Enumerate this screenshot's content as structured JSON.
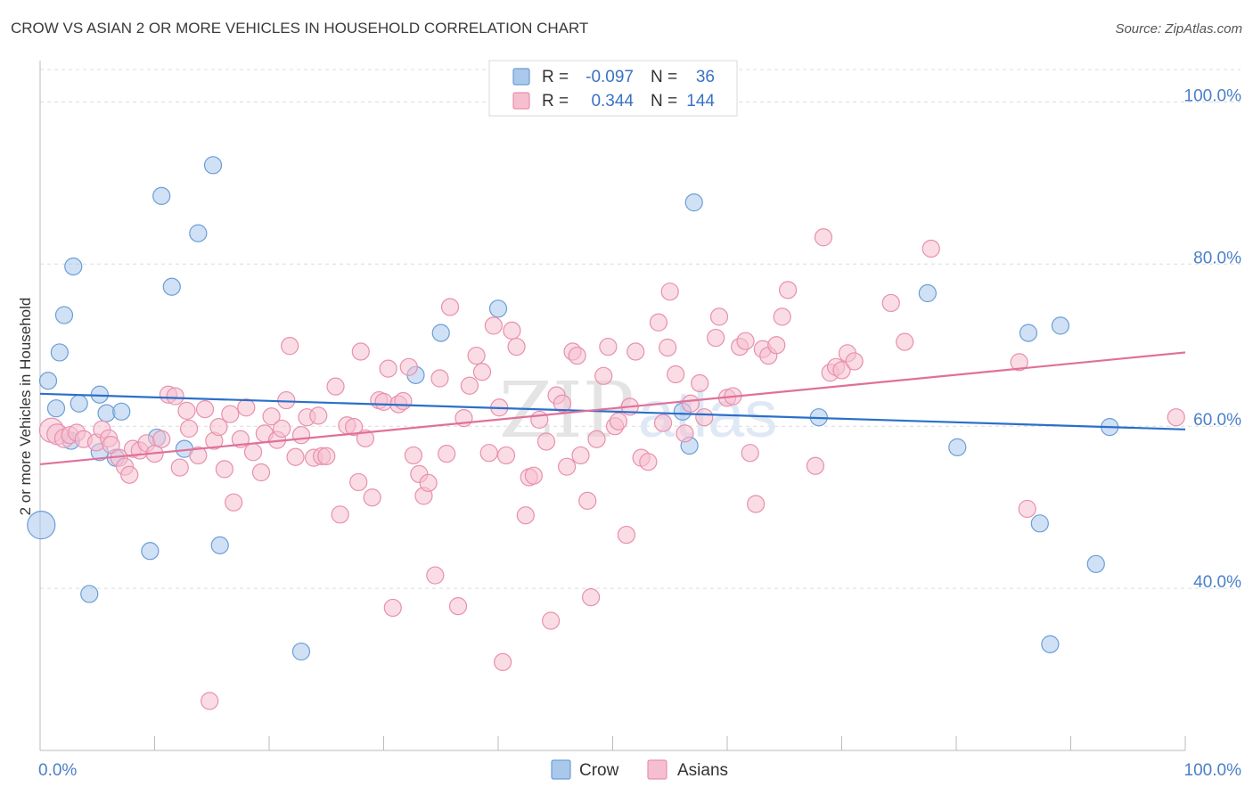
{
  "title": "CROW VS ASIAN 2 OR MORE VEHICLES IN HOUSEHOLD CORRELATION CHART",
  "source": "Source: ZipAtlas.com",
  "watermark_zip": "ZIP",
  "watermark_atlas": "atlas",
  "legend_box": {
    "rows": [
      {
        "r_label": "R =",
        "r_value": "-0.097",
        "n_label": "N =",
        "n_value": "36"
      },
      {
        "r_label": "R =",
        "r_value": "0.344",
        "n_label": "N =",
        "n_value": "144"
      }
    ]
  },
  "bottom_legend": [
    "Crow",
    "Asians"
  ],
  "chart_data": {
    "type": "scatter",
    "xlabel": "",
    "ylabel": "2 or more Vehicles in Household",
    "xlim": [
      0,
      100
    ],
    "ylim": [
      20,
      104
    ],
    "x_tick_labels": [
      "0.0%",
      "100.0%"
    ],
    "y_ticks": [
      40,
      60,
      80,
      100
    ],
    "y_tick_labels": [
      "40.0%",
      "60.0%",
      "80.0%",
      "100.0%"
    ],
    "grid": "horizontal-dashed",
    "legend_placement": "top-center",
    "colors": {
      "crow_fill": "#a9c8ec",
      "crow_stroke": "#6b9ed6",
      "crow_line": "#2b6fca",
      "asian_fill": "#f6bfd0",
      "asian_stroke": "#e890ad",
      "asian_line": "#e0709a",
      "value_text": "#3a72c4",
      "axis_text": "#4a7fc8"
    },
    "series": [
      {
        "name": "Crow",
        "trend": {
          "x": [
            0,
            100
          ],
          "y": [
            64.0,
            59.6
          ]
        },
        "points": [
          [
            0.7,
            65.6,
            14
          ],
          [
            1.4,
            62.2,
            14
          ],
          [
            1.7,
            69.1,
            14
          ],
          [
            2.1,
            73.7,
            14
          ],
          [
            2.7,
            58.2,
            14
          ],
          [
            2.9,
            79.7,
            14
          ],
          [
            3.4,
            62.8,
            14
          ],
          [
            4.3,
            39.3,
            14
          ],
          [
            5.2,
            63.9,
            14
          ],
          [
            5.2,
            56.8,
            14
          ],
          [
            5.8,
            61.6,
            14
          ],
          [
            6.6,
            56.1,
            14
          ],
          [
            7.1,
            61.8,
            14
          ],
          [
            9.6,
            44.6,
            14
          ],
          [
            10.2,
            58.6,
            14
          ],
          [
            10.6,
            88.4,
            14
          ],
          [
            11.5,
            77.2,
            14
          ],
          [
            12.6,
            57.2,
            14
          ],
          [
            13.8,
            83.8,
            14
          ],
          [
            15.1,
            92.2,
            14
          ],
          [
            15.7,
            45.3,
            14
          ],
          [
            22.8,
            32.2,
            14
          ],
          [
            32.8,
            66.3,
            14
          ],
          [
            35.0,
            71.5,
            14
          ],
          [
            40.0,
            74.5,
            14
          ],
          [
            56.1,
            61.8,
            14
          ],
          [
            56.7,
            57.6,
            14
          ],
          [
            57.1,
            87.6,
            14
          ],
          [
            68.0,
            61.1,
            14
          ],
          [
            77.5,
            76.4,
            14
          ],
          [
            80.1,
            57.4,
            14
          ],
          [
            86.3,
            71.5,
            14
          ],
          [
            87.3,
            48.0,
            14
          ],
          [
            89.1,
            72.4,
            14
          ],
          [
            92.2,
            43.0,
            14
          ],
          [
            93.4,
            59.9,
            14
          ],
          [
            88.2,
            33.1,
            14
          ],
          [
            0.1,
            47.8,
            26
          ]
        ]
      },
      {
        "name": "Asians",
        "trend": {
          "x": [
            0,
            100
          ],
          "y": [
            55.3,
            69.1
          ]
        },
        "points": [
          [
            1.0,
            59.5,
            22
          ],
          [
            1.5,
            59.0,
            18
          ],
          [
            2.1,
            58.5,
            16
          ],
          [
            2.6,
            58.9,
            14
          ],
          [
            3.2,
            59.2,
            14
          ],
          [
            3.8,
            58.4,
            14
          ],
          [
            4.9,
            58.0,
            14
          ],
          [
            5.4,
            59.6,
            14
          ],
          [
            6.0,
            58.5,
            14
          ],
          [
            6.2,
            57.7,
            14
          ],
          [
            6.9,
            56.1,
            14
          ],
          [
            7.4,
            55.0,
            14
          ],
          [
            7.8,
            54.0,
            14
          ],
          [
            8.1,
            57.2,
            14
          ],
          [
            8.7,
            57.0,
            14
          ],
          [
            9.3,
            57.9,
            14
          ],
          [
            10.0,
            56.6,
            14
          ],
          [
            10.6,
            58.4,
            14
          ],
          [
            11.2,
            63.9,
            14
          ],
          [
            11.8,
            63.7,
            14
          ],
          [
            12.2,
            54.9,
            14
          ],
          [
            12.8,
            61.9,
            14
          ],
          [
            13.0,
            59.7,
            14
          ],
          [
            13.8,
            56.4,
            14
          ],
          [
            14.4,
            62.1,
            14
          ],
          [
            14.8,
            26.1,
            14
          ],
          [
            15.2,
            58.2,
            14
          ],
          [
            15.6,
            59.9,
            14
          ],
          [
            16.1,
            54.7,
            14
          ],
          [
            16.6,
            61.5,
            14
          ],
          [
            16.9,
            50.6,
            14
          ],
          [
            17.5,
            58.4,
            14
          ],
          [
            18.0,
            62.3,
            14
          ],
          [
            18.6,
            56.8,
            14
          ],
          [
            19.3,
            54.3,
            14
          ],
          [
            19.6,
            59.1,
            14
          ],
          [
            20.2,
            61.2,
            14
          ],
          [
            20.7,
            58.3,
            14
          ],
          [
            21.1,
            59.7,
            14
          ],
          [
            21.5,
            63.2,
            14
          ],
          [
            21.8,
            69.9,
            14
          ],
          [
            22.3,
            56.2,
            14
          ],
          [
            22.8,
            58.9,
            14
          ],
          [
            23.3,
            61.1,
            14
          ],
          [
            23.9,
            56.1,
            14
          ],
          [
            24.3,
            61.3,
            14
          ],
          [
            24.6,
            56.3,
            14
          ],
          [
            25.0,
            56.3,
            14
          ],
          [
            25.8,
            64.9,
            14
          ],
          [
            26.2,
            49.1,
            14
          ],
          [
            26.8,
            60.1,
            14
          ],
          [
            27.4,
            59.9,
            14
          ],
          [
            27.8,
            53.1,
            14
          ],
          [
            28.0,
            69.2,
            14
          ],
          [
            28.4,
            58.5,
            14
          ],
          [
            29.0,
            51.2,
            14
          ],
          [
            29.6,
            63.2,
            14
          ],
          [
            30.0,
            63.0,
            14
          ],
          [
            30.4,
            67.1,
            14
          ],
          [
            30.8,
            37.6,
            14
          ],
          [
            31.3,
            62.7,
            14
          ],
          [
            31.7,
            63.1,
            14
          ],
          [
            32.2,
            67.3,
            14
          ],
          [
            32.6,
            56.4,
            14
          ],
          [
            33.1,
            54.1,
            14
          ],
          [
            33.5,
            51.4,
            14
          ],
          [
            33.9,
            53.0,
            14
          ],
          [
            34.5,
            41.6,
            14
          ],
          [
            34.9,
            65.9,
            14
          ],
          [
            35.5,
            56.6,
            14
          ],
          [
            35.8,
            74.7,
            14
          ],
          [
            36.5,
            37.8,
            14
          ],
          [
            37.0,
            61.0,
            14
          ],
          [
            37.5,
            65.0,
            14
          ],
          [
            38.1,
            68.7,
            14
          ],
          [
            38.6,
            66.7,
            14
          ],
          [
            39.2,
            56.7,
            14
          ],
          [
            39.6,
            72.4,
            14
          ],
          [
            40.1,
            62.3,
            14
          ],
          [
            40.4,
            30.9,
            14
          ],
          [
            40.7,
            56.4,
            14
          ],
          [
            41.2,
            71.8,
            14
          ],
          [
            41.6,
            69.8,
            14
          ],
          [
            42.4,
            49.0,
            14
          ],
          [
            42.7,
            53.7,
            14
          ],
          [
            43.1,
            53.9,
            14
          ],
          [
            43.6,
            60.8,
            14
          ],
          [
            44.2,
            58.1,
            14
          ],
          [
            44.6,
            36.0,
            14
          ],
          [
            45.1,
            63.8,
            14
          ],
          [
            45.6,
            62.8,
            14
          ],
          [
            46.0,
            55.0,
            14
          ],
          [
            46.5,
            69.2,
            14
          ],
          [
            46.9,
            68.7,
            14
          ],
          [
            47.2,
            56.4,
            14
          ],
          [
            47.8,
            50.8,
            14
          ],
          [
            48.1,
            38.9,
            14
          ],
          [
            48.6,
            58.4,
            14
          ],
          [
            49.2,
            66.2,
            14
          ],
          [
            49.6,
            69.8,
            14
          ],
          [
            50.2,
            60.0,
            14
          ],
          [
            50.5,
            60.6,
            14
          ],
          [
            51.2,
            46.6,
            14
          ],
          [
            51.5,
            62.4,
            14
          ],
          [
            52.0,
            69.2,
            14
          ],
          [
            52.5,
            56.1,
            14
          ],
          [
            53.1,
            55.6,
            14
          ],
          [
            54.0,
            72.8,
            14
          ],
          [
            54.4,
            60.4,
            14
          ],
          [
            54.8,
            69.7,
            14
          ],
          [
            55.0,
            76.6,
            14
          ],
          [
            55.5,
            66.4,
            14
          ],
          [
            56.3,
            59.1,
            14
          ],
          [
            56.8,
            62.8,
            14
          ],
          [
            57.6,
            65.3,
            14
          ],
          [
            58.0,
            61.1,
            14
          ],
          [
            59.0,
            70.9,
            14
          ],
          [
            59.3,
            73.5,
            14
          ],
          [
            60.0,
            63.5,
            14
          ],
          [
            60.5,
            63.7,
            14
          ],
          [
            61.1,
            69.8,
            14
          ],
          [
            61.6,
            70.5,
            14
          ],
          [
            62.0,
            56.7,
            14
          ],
          [
            62.5,
            50.4,
            14
          ],
          [
            63.1,
            69.5,
            14
          ],
          [
            63.6,
            68.7,
            14
          ],
          [
            64.3,
            70.0,
            14
          ],
          [
            64.8,
            73.5,
            14
          ],
          [
            65.3,
            76.8,
            14
          ],
          [
            67.7,
            55.1,
            14
          ],
          [
            68.4,
            83.3,
            14
          ],
          [
            69.0,
            66.6,
            14
          ],
          [
            69.5,
            67.3,
            14
          ],
          [
            70.0,
            66.9,
            14
          ],
          [
            70.5,
            69.0,
            14
          ],
          [
            71.1,
            68.0,
            14
          ],
          [
            74.3,
            75.2,
            14
          ],
          [
            75.5,
            70.4,
            14
          ],
          [
            77.8,
            81.9,
            14
          ],
          [
            85.5,
            67.9,
            14
          ],
          [
            86.2,
            49.8,
            14
          ],
          [
            99.2,
            61.1,
            14
          ]
        ]
      }
    ]
  }
}
